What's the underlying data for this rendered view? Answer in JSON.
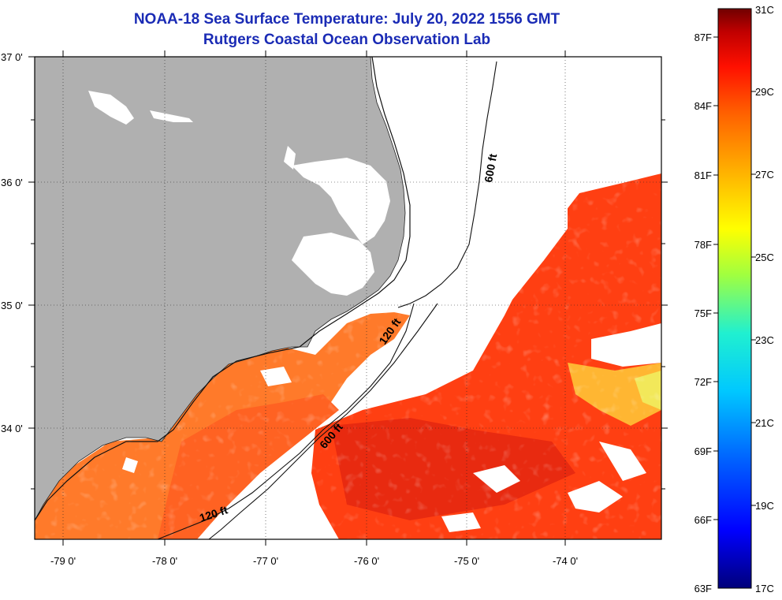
{
  "title": "NOAA-18 Sea Surface Temperature:  July 20, 2022 1556 GMT",
  "subtitle": "Rutgers Coastal Ocean Observation Lab",
  "lat_labels": [
    "37 0'",
    "36 0'",
    "35 0'",
    "34 0'"
  ],
  "lon_labels": [
    "-79 0'",
    "-78 0'",
    "-77 0'",
    "-76 0'",
    "-75 0'",
    "-74 0'"
  ],
  "contours": [
    {
      "label": "600 ft",
      "kind": "isobath"
    },
    {
      "label": "120 ft",
      "kind": "isobath"
    },
    {
      "label": "600 ft",
      "kind": "isobath"
    },
    {
      "label": "120 ft",
      "kind": "isobath"
    }
  ],
  "colorbar": {
    "celsius_labels": [
      "31C",
      "29C",
      "27C",
      "25C",
      "23C",
      "21C",
      "19C",
      "17C"
    ],
    "fahrenheit_labels": [
      "87F",
      "84F",
      "81F",
      "78F",
      "75F",
      "72F",
      "69F",
      "66F",
      "63F"
    ],
    "stops": [
      "#00007a",
      "#0000ff",
      "#0060ff",
      "#00c8ff",
      "#20f0d0",
      "#a0ff40",
      "#ffff00",
      "#ffb000",
      "#ff6000",
      "#ff1000",
      "#c00000",
      "#700000"
    ]
  },
  "colors": {
    "land": "#b0b0b0",
    "cloud": "#ffffff",
    "warm_water": "#ff4a14",
    "shelf_water": "#ff7a28",
    "title": "#1a2bb5"
  }
}
